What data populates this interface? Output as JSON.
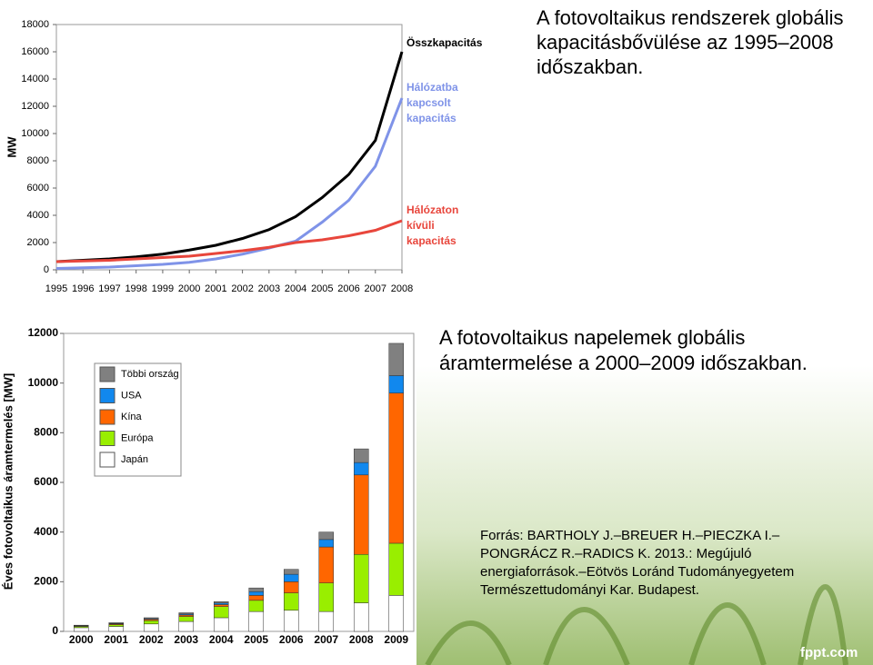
{
  "slide": {
    "title_1": "A fotovoltaikus rendszerek globális kapacitásbővülése az 1995–2008 időszakban.",
    "title_2": "A fotovoltaikus napelemek globális áramtermelése a 2000–2009 időszakban.",
    "source": "Forrás: BARTHOLY J.–BREUER H.–PIECZKA I.–PONGRÁCZ R.–RADICS K. 2013.: Megújuló energiaforrások.–Eötvös Loránd Tudományegyetem Természettudományi Kar. Budapest.",
    "footer": "fppt.com"
  },
  "chart_data": [
    {
      "type": "line",
      "ylabel": "MW",
      "x": [
        1995,
        1996,
        1997,
        1998,
        1999,
        2000,
        2001,
        2002,
        2003,
        2004,
        2005,
        2006,
        2007,
        2008
      ],
      "xlim": [
        1995,
        2008
      ],
      "xticks": [
        1995,
        1996,
        1997,
        1998,
        1999,
        2000,
        2001,
        2002,
        2003,
        2004,
        2005,
        2006,
        2007,
        2008
      ],
      "ylim": [
        0,
        18000
      ],
      "yticks": [
        0,
        2000,
        4000,
        6000,
        8000,
        10000,
        12000,
        14000,
        16000,
        18000
      ],
      "series": [
        {
          "name": "Összkapacitás",
          "color": "#000000",
          "values": [
            600,
            700,
            800,
            950,
            1150,
            1450,
            1800,
            2300,
            2950,
            3900,
            5300,
            7000,
            9500,
            16000
          ]
        },
        {
          "name": "Hálózatba kapcsolt kapacitás",
          "color": "#7f93e8",
          "values": [
            100,
            150,
            200,
            300,
            400,
            550,
            800,
            1150,
            1600,
            2100,
            3500,
            5100,
            7600,
            12600
          ]
        },
        {
          "name": "Hálózaton kívüli kapacitás",
          "color": "#e8463c",
          "values": [
            600,
            650,
            700,
            800,
            900,
            1000,
            1200,
            1400,
            1650,
            2000,
            2200,
            2500,
            2900,
            3600
          ]
        }
      ]
    },
    {
      "type": "stacked-bar",
      "ylabel": "Éves fotovoltaikus áramtermelés [MW]",
      "categories": [
        "2000",
        "2001",
        "2002",
        "2003",
        "2004",
        "2005",
        "2006",
        "2007",
        "2008",
        "2009"
      ],
      "ylim": [
        0,
        12000
      ],
      "yticks": [
        0,
        2000,
        4000,
        6000,
        8000,
        10000,
        12000
      ],
      "series": [
        {
          "name": "Japán",
          "color": "#ffffff",
          "values": [
            150,
            200,
            300,
            400,
            550,
            800,
            850,
            800,
            1150,
            1450
          ]
        },
        {
          "name": "Európa",
          "color": "#99ee00",
          "values": [
            50,
            70,
            130,
            200,
            450,
            450,
            700,
            1150,
            1950,
            2100
          ]
        },
        {
          "name": "Kína",
          "color": "#ff6600",
          "values": [
            20,
            30,
            50,
            60,
            80,
            200,
            450,
            1450,
            3200,
            6050
          ]
        },
        {
          "name": "USA",
          "color": "#1188ee",
          "values": [
            10,
            20,
            30,
            40,
            60,
            150,
            300,
            300,
            500,
            700
          ]
        },
        {
          "name": "Többi ország",
          "color": "#808080",
          "values": [
            20,
            30,
            40,
            50,
            60,
            150,
            200,
            300,
            550,
            1300
          ]
        }
      ]
    }
  ]
}
